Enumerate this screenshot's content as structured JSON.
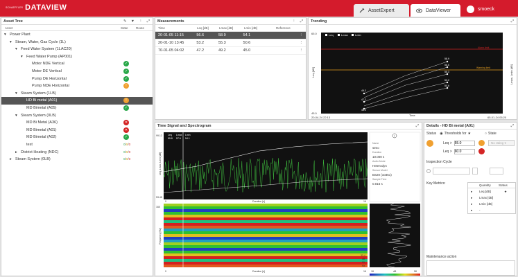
{
  "header": {
    "logo_small": "SCHAEFFLER",
    "logo_big": "DATAVIEW",
    "tab_expert": "AssetExpert",
    "tab_viewer": "DataViewer",
    "user": "smoeck"
  },
  "tree": {
    "title": "Asset Tree",
    "col_asset": "Asset",
    "col_state": "State",
    "col_route": "Route",
    "rows": [
      {
        "label": "Power Plant",
        "depth": 0,
        "arrow": "▾",
        "icon": "",
        "sel": false
      },
      {
        "label": "Steam, Water, Gas Cycle (1L)",
        "depth": 1,
        "arrow": "▾",
        "icon": "",
        "sel": false
      },
      {
        "label": "Feed Water System (1LAC20)",
        "depth": 2,
        "arrow": "▾",
        "icon": "",
        "sel": false
      },
      {
        "label": "Feed Water Pump (AP001)",
        "depth": 3,
        "arrow": "▾",
        "icon": "",
        "sel": false
      },
      {
        "label": "Motor NDE Vertical",
        "depth": 4,
        "arrow": "",
        "icon": "g",
        "sel": false
      },
      {
        "label": "Motor DE Vertical",
        "depth": 4,
        "arrow": "",
        "icon": "g",
        "sel": false
      },
      {
        "label": "Pump DE Horizontal",
        "depth": 4,
        "arrow": "",
        "icon": "g",
        "sel": false
      },
      {
        "label": "Pump NDE Horizontal",
        "depth": 4,
        "arrow": "",
        "icon": "o",
        "sel": false
      },
      {
        "label": "Steam System (1LB)",
        "depth": 2,
        "arrow": "▾",
        "icon": "",
        "sel": false
      },
      {
        "label": "HD Bi metal (A01)",
        "depth": 3,
        "arrow": "",
        "icon": "o",
        "sel": true
      },
      {
        "label": "MD Bimetal (A05)",
        "depth": 3,
        "arrow": "",
        "icon": "g",
        "sel": false
      },
      {
        "label": "Steam System (0LB)",
        "depth": 2,
        "arrow": "▾",
        "icon": "",
        "sel": false
      },
      {
        "label": "MD Bi Metal (A36)",
        "depth": 3,
        "arrow": "",
        "icon": "r",
        "sel": false
      },
      {
        "label": "MD Bimetal (A01)",
        "depth": 3,
        "arrow": "",
        "icon": "r",
        "sel": false
      },
      {
        "label": "MD Bimetal (A02)",
        "depth": 3,
        "arrow": "",
        "icon": "g",
        "sel": false
      },
      {
        "label": "test",
        "depth": 3,
        "arrow": "",
        "icon": "m",
        "sel": false
      },
      {
        "label": "District Heating (NDC)",
        "depth": 2,
        "arrow": "▸",
        "icon": "m",
        "sel": false
      },
      {
        "label": "Steam System (0LB)",
        "depth": 1,
        "arrow": "▸",
        "icon": "m",
        "sel": false
      }
    ]
  },
  "measurements": {
    "title": "Measurements",
    "cols": [
      "Time",
      "Leq [dB]",
      "Lmax [dB]",
      "Lmin [dB]",
      "Reference"
    ],
    "rows": [
      [
        "20-01-05 11:15",
        "56.6",
        "58.9",
        "54.1",
        ""
      ],
      [
        "20-01-10 13:45",
        "53.2",
        "55.3",
        "50.6",
        ""
      ],
      [
        "70-01-05 04:02",
        "47.2",
        "49.2",
        "45.0",
        ""
      ]
    ]
  },
  "trending": {
    "title": "Trending",
    "legend": [
      "Leq",
      "Lmax",
      "Lmin"
    ],
    "y_top": "65.0",
    "y_bot": "45.0",
    "x_left": "20-04-24 22:13",
    "x_right": "65-01-24 05:20",
    "xlabel": "Time",
    "ylabel_l": "Leq [dB]",
    "ylabel_r": "Lmax, Lmin [dB]",
    "alarm": "Alarm limit",
    "warning": "Warning limit",
    "labels": [
      "58.9",
      "56.6",
      "54.1",
      "49.2",
      "47.2",
      "45.0",
      "55.3",
      "53.2",
      "50.6"
    ]
  },
  "signal": {
    "title": "Time Signal and Spectrogram",
    "vals_hdr": [
      "Leq",
      "Lmax",
      "Lmin"
    ],
    "vals": [
      "55.8",
      "57.6",
      "54.1"
    ],
    "y_top": "99.12",
    "y_bot": "53.48",
    "xl": "0",
    "xr": "16",
    "xlabel": "Duration [s]",
    "ylabel": "Leq, Lmax, Lmin [dB]",
    "spec_top": "160",
    "spec_ylabel": "Frequency [Hz]",
    "spec_xl": "0",
    "spec_xr": "16",
    "spec_xlabel": "Duration [s]",
    "spec_rv1": "33.4",
    "spec_rv2": "dB",
    "spec_rv3": "20",
    "spec_rv4": "Hz",
    "info": {
      "name_l": "Name",
      "name": "stmo",
      "dur_l": "Duration",
      "dur": "10.000 s",
      "mode_l": "Audio Mode",
      "mode": "Heterodyn",
      "sensor_l": "Sensor Model",
      "sensor": "BS20 (10351)",
      "st_l": "Sample Time",
      "st": "0.016 s"
    },
    "side_xl": "18",
    "side_xr": "58",
    "side_xlabel": "dB"
  },
  "details": {
    "title": "Details - HD Bi metal (A01)",
    "status": "Status",
    "opt1": "Thresholds for",
    "opt2": "State",
    "leq1": "Leq >",
    "v1": "55.0",
    "leq2": "Leq >",
    "v2": "60.0",
    "rating": "No rating",
    "insp": "Inspection Cycle",
    "metrics": "Key Metrics:",
    "mcols": [
      "Quantity",
      "Status"
    ],
    "mrows": [
      "Leq [dB]",
      "Lmax [dB]",
      "Lmin [dB]",
      "-"
    ],
    "maint": "Maintenance action"
  }
}
